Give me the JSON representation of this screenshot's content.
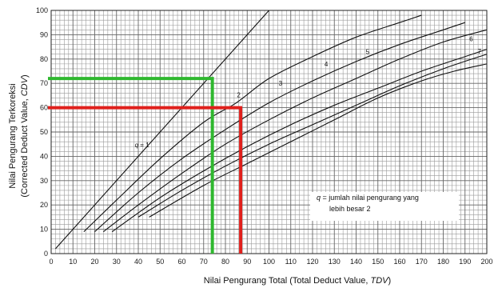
{
  "chart_data": {
    "type": "line",
    "xlabel_parts": [
      "Nilai Pengurang Total (Total Deduct Value, ",
      "TDV",
      ")"
    ],
    "ylabel_lines": [
      [
        "Nilai Pengurang Terkoreksi"
      ],
      [
        "(Corrected Deduct Value, ",
        "CDV",
        ")"
      ]
    ],
    "xlim": [
      0,
      200
    ],
    "ylim": [
      0,
      100
    ],
    "x_ticks": [
      0,
      10,
      20,
      30,
      40,
      50,
      60,
      70,
      80,
      90,
      100,
      110,
      120,
      130,
      140,
      150,
      160,
      170,
      180,
      190,
      200
    ],
    "y_ticks": [
      0,
      10,
      20,
      30,
      40,
      50,
      60,
      70,
      80,
      90,
      100
    ],
    "grid": true,
    "series": [
      {
        "name": "q = 1",
        "points": [
          [
            2,
            2
          ],
          [
            100,
            100
          ]
        ]
      },
      {
        "name": "2",
        "points": [
          [
            15,
            9
          ],
          [
            30,
            22
          ],
          [
            50,
            39
          ],
          [
            70,
            54
          ],
          [
            85,
            62
          ],
          [
            100,
            72
          ],
          [
            120,
            81
          ],
          [
            140,
            89
          ],
          [
            160,
            95
          ],
          [
            170,
            98
          ]
        ]
      },
      {
        "name": "3",
        "points": [
          [
            20,
            9
          ],
          [
            40,
            25
          ],
          [
            60,
            39
          ],
          [
            80,
            51
          ],
          [
            100,
            62
          ],
          [
            120,
            71
          ],
          [
            140,
            79
          ],
          [
            160,
            86
          ],
          [
            180,
            92
          ],
          [
            190,
            95
          ]
        ]
      },
      {
        "name": "4",
        "points": [
          [
            24,
            9
          ],
          [
            40,
            20
          ],
          [
            60,
            33
          ],
          [
            80,
            45
          ],
          [
            100,
            55
          ],
          [
            120,
            64
          ],
          [
            140,
            72
          ],
          [
            160,
            80
          ],
          [
            180,
            87
          ],
          [
            200,
            92
          ]
        ]
      },
      {
        "name": "5",
        "points": [
          [
            28,
            9
          ],
          [
            50,
            23
          ],
          [
            70,
            34
          ],
          [
            90,
            44
          ],
          [
            110,
            53
          ],
          [
            130,
            61
          ],
          [
            150,
            68
          ],
          [
            170,
            75
          ],
          [
            190,
            81
          ],
          [
            200,
            84
          ]
        ]
      },
      {
        "name": "6",
        "points": [
          [
            40,
            15
          ],
          [
            60,
            26
          ],
          [
            80,
            36
          ],
          [
            100,
            45
          ],
          [
            120,
            53
          ],
          [
            140,
            61
          ],
          [
            160,
            69
          ],
          [
            180,
            76
          ],
          [
            200,
            82
          ]
        ]
      },
      {
        "name": "7",
        "points": [
          [
            45,
            15
          ],
          [
            70,
            28
          ],
          [
            90,
            37
          ],
          [
            110,
            46
          ],
          [
            130,
            55
          ],
          [
            150,
            64
          ],
          [
            170,
            71
          ],
          [
            185,
            75
          ],
          [
            200,
            78
          ]
        ]
      }
    ],
    "annotations": [
      {
        "name": "green-lookup",
        "color": "#2fb82f",
        "x": 74,
        "y": 72
      },
      {
        "name": "red-lookup",
        "color": "#e0201c",
        "x": 87,
        "y": 60
      }
    ],
    "legend": {
      "lines": [
        [
          "q",
          " =  jumlah nilai pengurang yang"
        ],
        [
          "lebih besar 2"
        ]
      ],
      "placement": "lower-right"
    }
  }
}
